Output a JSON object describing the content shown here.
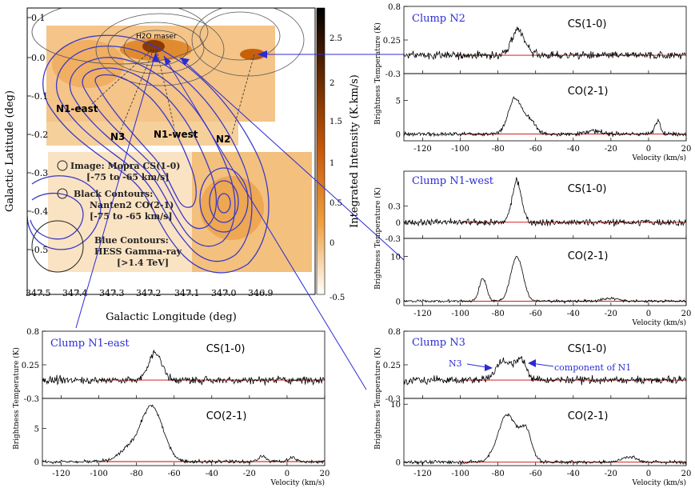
{
  "map": {
    "xlabel": "Galactic Longitude (deg)",
    "ylabel": "Galactic Latitude (deg)",
    "colorbar_label": "Integrated Intensity (K.km/s)",
    "x_ticks": [
      "347.5",
      "347.4",
      "347.3",
      "347.2",
      "347.1",
      "347.0",
      "346.9"
    ],
    "y_ticks": [
      "0.1",
      "0.0",
      "-0.1",
      "-0.2",
      "-0.3",
      "-0.4",
      "-0.5"
    ],
    "cbar_ticks": [
      "2.5",
      "2",
      "1.5",
      "1",
      "0.5",
      "0",
      "-0.5"
    ],
    "clump_labels": {
      "n1east": "N1-east",
      "n3": "N3",
      "n1west": "N1-west",
      "n2": "N2",
      "maser": "H2O maser"
    },
    "legend": {
      "image_line1": "Image: Mopra CS(1-0)",
      "image_line2": "[-75 to -65 km/s]",
      "black_line1": "Black Contours:",
      "black_line2": "Nanten2 CO(2-1)",
      "black_line3": "[-75 to -65 km/s]",
      "blue_line1": "Blue Contours:",
      "blue_line2": "HESS Gamma-ray",
      "blue_line3": "[>1.4 TeV]"
    },
    "colors": {
      "accent": "#2b2bd6",
      "image": "#e8890c",
      "contour": "#333333",
      "baseline": "#cc0000"
    }
  },
  "chart_data": [
    {
      "type": "line",
      "title": "Clump N2",
      "xlabel": "Velocity (km/s)",
      "ylabel": "Brightness Temperature (K)",
      "xlim": [
        -130,
        20
      ],
      "x_ticks": [
        "-120",
        "-100",
        "-80",
        "-60",
        "-40",
        "-20",
        "0",
        "20"
      ],
      "panels": [
        {
          "line": "CS(1-0)",
          "ylim": [
            -0.3,
            0.8
          ],
          "y_ticks": [
            "0.8",
            "0.25",
            "-0.3"
          ],
          "noise": 0.06,
          "peaks": [
            [
              -70,
              0.35,
              3
            ],
            [
              -66,
              0.12,
              3
            ]
          ]
        },
        {
          "line": "CO(2-1)",
          "ylim": [
            -1,
            9
          ],
          "y_ticks": [
            "5",
            "0"
          ],
          "noise": 0.25,
          "peaks": [
            [
              -71,
              5.3,
              3.5
            ],
            [
              -63,
              2,
              3
            ],
            [
              5,
              2,
              1.5
            ],
            [
              -30,
              0.5,
              4
            ]
          ]
        }
      ]
    },
    {
      "type": "line",
      "title": "Clump N1-west",
      "xlabel": "Velocity (km/s)",
      "ylabel": "Brightness Temperature (K)",
      "xlim": [
        -130,
        20
      ],
      "x_ticks": [
        "-120",
        "-100",
        "-80",
        "-60",
        "-40",
        "-20",
        "0",
        "20"
      ],
      "panels": [
        {
          "line": "CS(1-0)",
          "ylim": [
            -0.3,
            0.95
          ],
          "y_ticks": [
            "0.3",
            "0",
            "-0.3"
          ],
          "noise": 0.06,
          "peaks": [
            [
              -70,
              0.75,
              2.5
            ]
          ]
        },
        {
          "line": "CO(2-1)",
          "ylim": [
            -1,
            14
          ],
          "y_ticks": [
            "10",
            "0"
          ],
          "noise": 0.15,
          "peaks": [
            [
              -70,
              10,
              3.2
            ],
            [
              -88,
              5,
              2
            ],
            [
              -20,
              0.6,
              4
            ]
          ]
        }
      ]
    },
    {
      "type": "line",
      "title": "Clump N1-east",
      "xlabel": "Velocity (km/s)",
      "ylabel": "Brightness Temperature (K)",
      "xlim": [
        -130,
        20
      ],
      "x_ticks": [
        "-120",
        "-100",
        "-80",
        "-60",
        "-40",
        "-20",
        "0",
        "20"
      ],
      "panels": [
        {
          "line": "CS(1-0)",
          "ylim": [
            -0.3,
            0.8
          ],
          "y_ticks": [
            "0.8",
            "0.25",
            "-0.3"
          ],
          "noise": 0.06,
          "peaks": [
            [
              -70,
              0.45,
              3.5
            ]
          ]
        },
        {
          "line": "CO(2-1)",
          "ylim": [
            -0.6,
            9.5
          ],
          "y_ticks": [
            "5",
            "0"
          ],
          "noise": 0.2,
          "peaks": [
            [
              -72,
              8.3,
              6
            ],
            [
              -85,
              1.5,
              5
            ],
            [
              -13,
              0.8,
              2
            ],
            [
              3,
              0.6,
              2
            ]
          ]
        }
      ]
    },
    {
      "type": "line",
      "title": "Clump N3",
      "xlabel": "Velocity (km/s)",
      "ylabel": "Brightness Temperature (K)",
      "xlim": [
        -130,
        20
      ],
      "x_ticks": [
        "-120",
        "-100",
        "-80",
        "-60",
        "-40",
        "-20",
        "0",
        "20"
      ],
      "annotations": {
        "n3": "N3",
        "component": "component of N1"
      },
      "panels": [
        {
          "line": "CS(1-0)",
          "ylim": [
            -0.3,
            0.8
          ],
          "y_ticks": [
            "0.8",
            "0.25",
            "-0.3"
          ],
          "noise": 0.06,
          "peaks": [
            [
              -77,
              0.32,
              4
            ],
            [
              -68,
              0.33,
              3
            ]
          ]
        },
        {
          "line": "CO(2-1)",
          "ylim": [
            -0.6,
            11
          ],
          "y_ticks": [
            "10",
            "0"
          ],
          "noise": 0.2,
          "peaks": [
            [
              -75,
              8.2,
              5
            ],
            [
              -65,
              5,
              3
            ],
            [
              -10,
              0.9,
              4
            ]
          ]
        }
      ]
    }
  ]
}
